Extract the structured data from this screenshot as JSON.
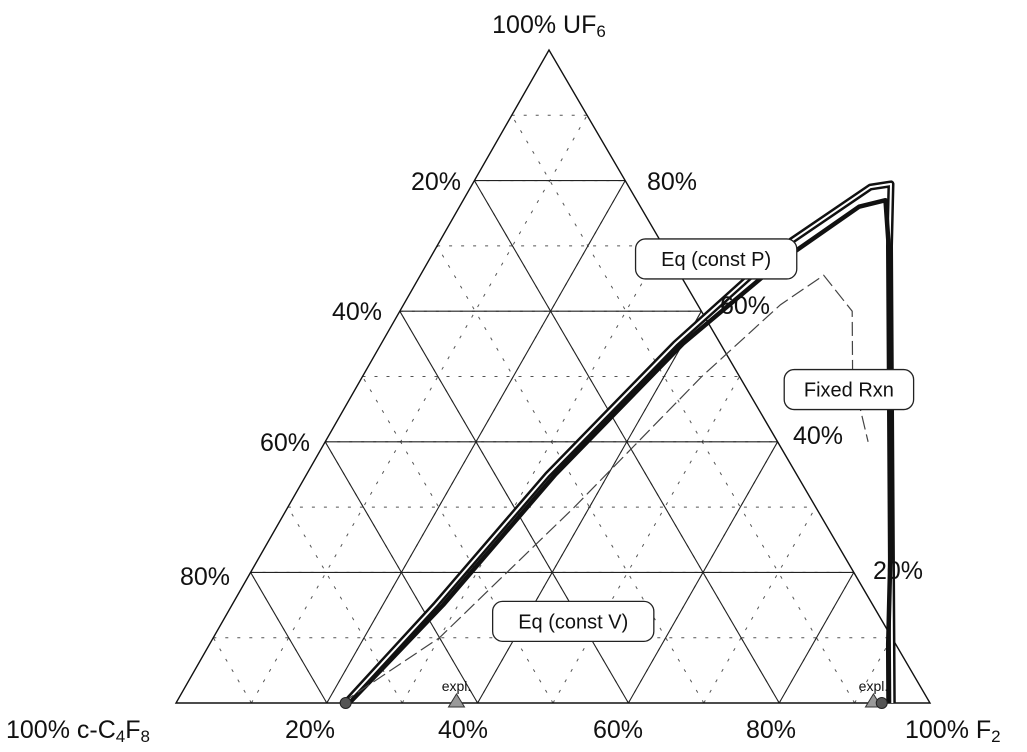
{
  "chart_data": {
    "type": "ternary",
    "vertices": {
      "top": {
        "text": "100% UF",
        "sub": "6"
      },
      "left": {
        "text": "100% c-C",
        "sub1": "4",
        "mid": "F",
        "sub2": "8"
      },
      "right": {
        "text": "100% F",
        "sub": "2"
      }
    },
    "left_edge_ticks": [
      "20%",
      "40%",
      "60%",
      "80%"
    ],
    "right_edge_ticks": [
      "80%",
      "60%",
      "40%",
      "20%"
    ],
    "bottom_edge_ticks": [
      "20%",
      "40%",
      "60%",
      "80%"
    ],
    "grid_major_step": 0.2,
    "grid_minor_step": 0.1,
    "series": [
      {
        "name": "Eq (const P)",
        "style": "double-thick",
        "color": "#111111",
        "points": [
          {
            "f2": 0.225,
            "uf6": 0.0
          },
          {
            "f2": 0.27,
            "uf6": 0.15
          },
          {
            "f2": 0.32,
            "uf6": 0.35
          },
          {
            "f2": 0.39,
            "uf6": 0.55
          },
          {
            "f2": 0.46,
            "uf6": 0.7
          },
          {
            "f2": 0.53,
            "uf6": 0.79
          },
          {
            "f2": 0.555,
            "uf6": 0.795
          },
          {
            "f2": 0.6,
            "uf6": 0.7
          },
          {
            "f2": 0.7,
            "uf6": 0.5
          },
          {
            "f2": 0.8,
            "uf6": 0.3
          },
          {
            "f2": 0.9,
            "uf6": 0.1
          },
          {
            "f2": 0.95,
            "uf6": 0.0
          }
        ]
      },
      {
        "name": "Eq (const V)",
        "style": "thick",
        "color": "#111111",
        "points": [
          {
            "f2": 0.23,
            "uf6": 0.0
          },
          {
            "f2": 0.28,
            "uf6": 0.15
          },
          {
            "f2": 0.33,
            "uf6": 0.35
          },
          {
            "f2": 0.4,
            "uf6": 0.55
          },
          {
            "f2": 0.47,
            "uf6": 0.68
          },
          {
            "f2": 0.53,
            "uf6": 0.76
          },
          {
            "f2": 0.56,
            "uf6": 0.77
          },
          {
            "f2": 0.61,
            "uf6": 0.68
          },
          {
            "f2": 0.71,
            "uf6": 0.48
          },
          {
            "f2": 0.81,
            "uf6": 0.28
          },
          {
            "f2": 0.9,
            "uf6": 0.09
          },
          {
            "f2": 0.945,
            "uf6": 0.0
          }
        ]
      },
      {
        "name": "Fixed Rxn",
        "style": "thin-dashed",
        "color": "#444444",
        "points": [
          {
            "f2": 0.22,
            "uf6": 0.0
          },
          {
            "f2": 0.3,
            "uf6": 0.1
          },
          {
            "f2": 0.38,
            "uf6": 0.3
          },
          {
            "f2": 0.45,
            "uf6": 0.5
          },
          {
            "f2": 0.5,
            "uf6": 0.61
          },
          {
            "f2": 0.535,
            "uf6": 0.655
          },
          {
            "f2": 0.6,
            "uf6": 0.6
          },
          {
            "f2": 0.65,
            "uf6": 0.5
          },
          {
            "f2": 0.72,
            "uf6": 0.4
          }
        ]
      }
    ],
    "callouts": [
      {
        "label": "Eq (const P)",
        "anchor": {
          "f2": 0.38,
          "uf6": 0.68
        }
      },
      {
        "label": "Fixed Rxn",
        "anchor": {
          "f2": 0.655,
          "uf6": 0.48
        }
      },
      {
        "label": "Eq (const V)",
        "anchor": {
          "f2": 0.465,
          "uf6": 0.125
        }
      }
    ],
    "markers": [
      {
        "label": "expl.",
        "shape": "triangle",
        "f2": 0.372,
        "uf6": 0.0,
        "color": "#9a9a9a"
      },
      {
        "label": "expl.",
        "shape": "triangle",
        "f2": 0.925,
        "uf6": 0.0,
        "color": "#9a9a9a"
      },
      {
        "shape": "circle",
        "f2": 0.225,
        "uf6": 0.0,
        "color": "#555555"
      },
      {
        "shape": "circle",
        "f2": 0.936,
        "uf6": 0.0,
        "color": "#555555"
      }
    ]
  }
}
